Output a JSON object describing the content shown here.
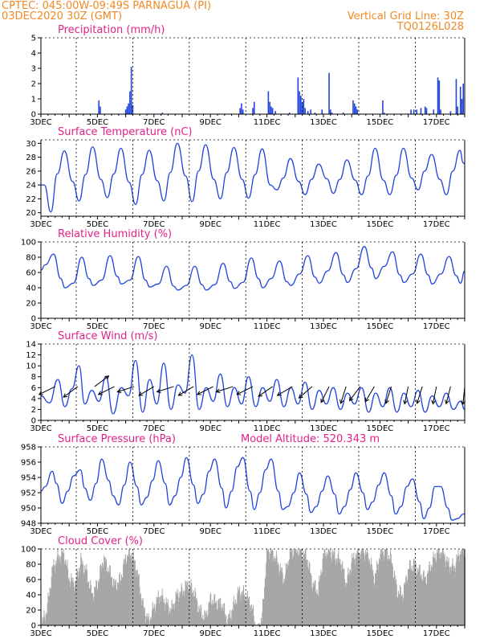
{
  "header": {
    "line1_left": "CPTEC:   045:00W-09:49S   PARNAGUA (PI)",
    "line2_left": "03DEC2020 30Z (GMT)",
    "line1_right": "Vertical Grid Line: 30Z",
    "line2_right": "TQ0126L028"
  },
  "colors": {
    "header": "#f08a24",
    "title": "#e0218a",
    "series": "#2244dd",
    "cloud": "#a6a6a6",
    "arrow": "#000000"
  },
  "chart_data": [
    {
      "id": "precip",
      "type": "bar",
      "title": "Precipitation (mm/h)",
      "ylim": [
        0,
        5
      ],
      "yticks": [
        0,
        1,
        2,
        3,
        4,
        5
      ],
      "xticks": [
        "3DEC",
        "5DEC",
        "7DEC",
        "9DEC",
        "11DEC",
        "13DEC",
        "15DEC",
        "17DEC"
      ],
      "x": [
        5.05,
        5.1,
        6.0,
        6.05,
        6.1,
        6.15,
        6.2,
        6.25,
        7.3,
        10.05,
        10.1,
        10.15,
        10.5,
        10.55,
        11.05,
        11.1,
        11.15,
        11.2,
        11.3,
        11.8,
        12.1,
        12.15,
        12.2,
        12.25,
        12.3,
        12.35,
        12.45,
        12.55,
        12.7,
        12.95,
        13.2,
        13.25,
        13.3,
        13.7,
        14.05,
        14.1,
        14.15,
        14.2,
        15.1,
        15.15,
        16.1,
        16.2,
        16.3,
        16.45,
        16.6,
        16.65,
        16.9,
        17.05,
        17.1,
        17.15,
        17.5,
        17.7,
        17.75,
        17.85,
        17.9,
        17.95
      ],
      "values": [
        0.9,
        0.5,
        0.3,
        0.5,
        0.7,
        1.5,
        3.1,
        0.6,
        0.1,
        0.4,
        0.7,
        0.3,
        0.4,
        0.8,
        1.5,
        0.8,
        0.5,
        0.4,
        0.2,
        0.1,
        2.4,
        1.5,
        1.2,
        0.8,
        1.0,
        0.4,
        0.2,
        0.3,
        0.1,
        0.3,
        2.7,
        0.3,
        0.1,
        0.1,
        0.9,
        0.7,
        0.5,
        0.3,
        0.9,
        0.1,
        0.3,
        0.3,
        0.3,
        0.4,
        0.5,
        0.4,
        0.3,
        2.4,
        2.2,
        0.3,
        0.2,
        2.3,
        0.5,
        1.8,
        1.0,
        2.0
      ]
    },
    {
      "id": "temp",
      "type": "line",
      "title": "Surface Temperature (nC)",
      "ylim": [
        19.5,
        30.5
      ],
      "yticks": [
        20,
        22,
        24,
        26,
        28,
        30
      ],
      "xticks": [
        "3DEC",
        "5DEC",
        "7DEC",
        "9DEC",
        "11DEC",
        "13DEC",
        "15DEC",
        "17DEC"
      ],
      "x": [
        3.0,
        3.12,
        3.35,
        3.58,
        3.83,
        4.12,
        4.35,
        4.58,
        4.83,
        5.12,
        5.35,
        5.58,
        5.83,
        6.12,
        6.35,
        6.58,
        6.83,
        7.12,
        7.35,
        7.58,
        7.83,
        8.12,
        8.35,
        8.58,
        8.83,
        9.12,
        9.35,
        9.58,
        9.83,
        10.12,
        10.35,
        10.58,
        10.83,
        11.12,
        11.35,
        11.58,
        11.83,
        12.12,
        12.35,
        12.58,
        12.83,
        13.12,
        13.35,
        13.58,
        13.83,
        14.12,
        14.35,
        14.58,
        14.83,
        15.12,
        15.35,
        15.58,
        15.83,
        16.12,
        16.35,
        16.58,
        16.83,
        17.12,
        17.35,
        17.58,
        17.83,
        17.95,
        18.0
      ],
      "values": [
        24.0,
        24.0,
        20.1,
        25.6,
        28.9,
        24.5,
        21.7,
        25.5,
        29.5,
        24.8,
        22.2,
        25.6,
        29.3,
        24.4,
        21.2,
        25.5,
        29.0,
        24.6,
        21.7,
        25.8,
        30.0,
        25.3,
        21.6,
        26.0,
        29.8,
        24.8,
        22.0,
        25.8,
        29.4,
        24.8,
        22.1,
        25.5,
        29.2,
        24.0,
        23.3,
        25.0,
        27.8,
        24.5,
        22.6,
        24.8,
        27.0,
        24.9,
        22.8,
        24.8,
        27.6,
        24.7,
        22.6,
        25.3,
        29.3,
        24.7,
        22.6,
        25.4,
        29.3,
        25.0,
        23.3,
        26.0,
        28.4,
        24.8,
        22.6,
        26.0,
        29.0,
        27.2,
        27.0
      ]
    },
    {
      "id": "rh",
      "type": "line",
      "title": "Relative Humidity (%)",
      "ylim": [
        0,
        100
      ],
      "yticks": [
        0,
        20,
        40,
        60,
        80,
        100
      ],
      "xticks": [
        "3DEC",
        "5DEC",
        "7DEC",
        "9DEC",
        "11DEC",
        "13DEC",
        "15DEC",
        "17DEC"
      ],
      "x": [
        3.0,
        3.15,
        3.45,
        3.7,
        3.85,
        4.15,
        4.45,
        4.7,
        4.85,
        5.15,
        5.45,
        5.7,
        5.85,
        6.15,
        6.45,
        6.7,
        6.85,
        7.15,
        7.45,
        7.7,
        7.85,
        8.15,
        8.45,
        8.7,
        8.85,
        9.15,
        9.45,
        9.7,
        9.85,
        10.15,
        10.45,
        10.7,
        10.85,
        11.15,
        11.45,
        11.7,
        11.85,
        12.15,
        12.45,
        12.7,
        12.85,
        13.15,
        13.45,
        13.7,
        13.85,
        14.15,
        14.45,
        14.7,
        14.85,
        15.15,
        15.45,
        15.7,
        15.85,
        16.15,
        16.45,
        16.7,
        16.85,
        17.15,
        17.45,
        17.7,
        17.85,
        18.0
      ],
      "values": [
        63,
        70,
        84,
        52,
        40,
        46,
        80,
        52,
        43,
        50,
        82,
        55,
        45,
        50,
        81,
        50,
        41,
        45,
        68,
        42,
        37,
        43,
        68,
        44,
        37,
        44,
        72,
        48,
        39,
        47,
        79,
        52,
        40,
        52,
        75,
        48,
        43,
        58,
        82,
        54,
        46,
        62,
        86,
        57,
        47,
        65,
        94,
        66,
        52,
        68,
        87,
        57,
        47,
        58,
        84,
        57,
        45,
        58,
        81,
        56,
        46,
        62
      ]
    },
    {
      "id": "wind",
      "type": "line",
      "title": "Surface Wind (m/s)",
      "ylim": [
        0,
        14
      ],
      "yticks": [
        0,
        2,
        4,
        6,
        8,
        10,
        12,
        14
      ],
      "xticks": [
        "3DEC",
        "5DEC",
        "7DEC",
        "9DEC",
        "11DEC",
        "13DEC",
        "15DEC",
        "17DEC"
      ],
      "x": [
        3.0,
        3.3,
        3.6,
        3.85,
        4.1,
        4.35,
        4.55,
        4.8,
        5.05,
        5.3,
        5.55,
        5.85,
        6.1,
        6.35,
        6.6,
        6.85,
        7.1,
        7.35,
        7.6,
        7.85,
        8.1,
        8.35,
        8.6,
        8.85,
        9.1,
        9.35,
        9.6,
        9.85,
        10.1,
        10.35,
        10.6,
        10.85,
        11.1,
        11.35,
        11.6,
        11.85,
        12.1,
        12.35,
        12.6,
        12.85,
        13.1,
        13.35,
        13.6,
        13.85,
        14.1,
        14.35,
        14.6,
        14.85,
        15.1,
        15.35,
        15.6,
        15.85,
        16.1,
        16.35,
        16.6,
        16.85,
        17.1,
        17.35,
        17.6,
        17.85,
        18.0
      ],
      "values": [
        4.5,
        3.2,
        7.5,
        2.5,
        5.8,
        10.0,
        3.0,
        5.5,
        3.5,
        8.0,
        1.2,
        6.0,
        4.5,
        11.0,
        1.5,
        7.5,
        3.0,
        10.5,
        2.0,
        6.5,
        5.0,
        12.0,
        2.0,
        6.0,
        3.5,
        8.5,
        2.5,
        6.0,
        3.0,
        8.0,
        2.5,
        6.0,
        3.5,
        7.5,
        2.5,
        6.0,
        3.0,
        7.0,
        2.0,
        5.5,
        3.0,
        6.0,
        2.0,
        5.0,
        3.0,
        6.0,
        1.5,
        5.0,
        2.5,
        6.0,
        1.5,
        5.0,
        2.5,
        5.5,
        1.5,
        4.5,
        2.5,
        5.0,
        2.0,
        3.5,
        2.0
      ],
      "arrows": [
        {
          "x": 3.5,
          "y": 6.2,
          "u": -0.9,
          "v": -0.45
        },
        {
          "x": 4.3,
          "y": 6.2,
          "u": -0.8,
          "v": -0.6
        },
        {
          "x": 4.9,
          "y": 6.2,
          "u": 0.8,
          "v": 0.6
        },
        {
          "x": 5.6,
          "y": 6.2,
          "u": -0.9,
          "v": -0.45
        },
        {
          "x": 6.3,
          "y": 6.2,
          "u": -0.95,
          "v": -0.3
        },
        {
          "x": 7.0,
          "y": 6.2,
          "u": -0.85,
          "v": -0.5
        },
        {
          "x": 7.7,
          "y": 6.2,
          "u": -0.95,
          "v": -0.3
        },
        {
          "x": 8.4,
          "y": 6.2,
          "u": -0.85,
          "v": -0.5
        },
        {
          "x": 9.1,
          "y": 6.2,
          "u": -0.9,
          "v": -0.45
        },
        {
          "x": 9.8,
          "y": 6.2,
          "u": -0.95,
          "v": -0.3
        },
        {
          "x": 10.5,
          "y": 6.2,
          "u": -0.9,
          "v": -0.45
        },
        {
          "x": 11.2,
          "y": 6.2,
          "u": -0.8,
          "v": -0.55
        },
        {
          "x": 11.9,
          "y": 6.2,
          "u": -0.85,
          "v": -0.5
        },
        {
          "x": 12.6,
          "y": 6.2,
          "u": -0.75,
          "v": -0.65
        },
        {
          "x": 13.2,
          "y": 6.2,
          "u": -0.45,
          "v": -0.9
        },
        {
          "x": 13.8,
          "y": 6.2,
          "u": -0.3,
          "v": -0.95
        },
        {
          "x": 14.3,
          "y": 6.2,
          "u": -0.6,
          "v": -0.8
        },
        {
          "x": 14.8,
          "y": 6.2,
          "u": -0.5,
          "v": -0.85
        },
        {
          "x": 15.4,
          "y": 6.2,
          "u": -0.3,
          "v": -0.95
        },
        {
          "x": 16.0,
          "y": 6.2,
          "u": -0.2,
          "v": -0.98
        },
        {
          "x": 16.5,
          "y": 6.2,
          "u": -0.3,
          "v": -0.95
        },
        {
          "x": 17.0,
          "y": 6.2,
          "u": -0.2,
          "v": -0.98
        },
        {
          "x": 17.5,
          "y": 6.2,
          "u": -0.25,
          "v": -0.97
        },
        {
          "x": 18.0,
          "y": 6.2,
          "u": -0.1,
          "v": -1.0
        }
      ]
    },
    {
      "id": "pres",
      "type": "line",
      "title": "Surface Pressure (hPa)",
      "annotation": "Model Altitude: 520.343 m",
      "ylim": [
        948,
        958
      ],
      "yticks": [
        948,
        950,
        952,
        954,
        956,
        958
      ],
      "xticks": [
        "3DEC",
        "5DEC",
        "7DEC",
        "9DEC",
        "11DEC",
        "13DEC",
        "15DEC",
        "17DEC"
      ],
      "x": [
        3.0,
        3.15,
        3.4,
        3.55,
        3.75,
        3.95,
        4.15,
        4.4,
        4.55,
        4.75,
        4.95,
        5.15,
        5.4,
        5.55,
        5.75,
        5.95,
        6.15,
        6.4,
        6.55,
        6.75,
        6.95,
        7.15,
        7.4,
        7.55,
        7.75,
        7.95,
        8.15,
        8.4,
        8.55,
        8.75,
        8.95,
        9.15,
        9.4,
        9.55,
        9.75,
        9.95,
        10.15,
        10.4,
        10.55,
        10.75,
        10.95,
        11.15,
        11.4,
        11.55,
        11.75,
        11.95,
        12.15,
        12.4,
        12.55,
        12.75,
        12.95,
        13.15,
        13.4,
        13.55,
        13.75,
        13.95,
        14.15,
        14.4,
        14.55,
        14.75,
        14.95,
        15.15,
        15.4,
        15.55,
        15.75,
        15.95,
        16.15,
        16.4,
        16.55,
        16.75,
        16.95,
        17.15,
        17.4,
        17.55,
        17.75,
        17.95,
        18.0
      ],
      "values": [
        952.2,
        952.8,
        954.8,
        953.2,
        950.6,
        952.2,
        954.2,
        955.0,
        952.6,
        951.0,
        953.2,
        956.4,
        953.6,
        951.6,
        950.4,
        953.0,
        956.0,
        952.8,
        950.4,
        951.4,
        953.6,
        956.2,
        953.2,
        950.4,
        951.6,
        954.0,
        956.6,
        953.0,
        950.6,
        951.8,
        954.8,
        956.4,
        952.6,
        950.0,
        952.2,
        955.4,
        956.6,
        952.2,
        949.8,
        952.0,
        955.0,
        956.4,
        952.2,
        949.8,
        950.2,
        952.0,
        954.6,
        951.8,
        949.4,
        950.2,
        952.2,
        954.2,
        951.8,
        949.2,
        950.2,
        952.4,
        954.6,
        952.0,
        949.8,
        950.8,
        953.0,
        954.6,
        951.6,
        949.2,
        950.2,
        952.8,
        953.8,
        950.8,
        948.6,
        950.0,
        952.8,
        952.8,
        950.0,
        948.4,
        948.6,
        949.2,
        949.2
      ]
    },
    {
      "id": "cloud",
      "type": "bar",
      "title": "Cloud Cover (%)",
      "ylim": [
        0,
        100
      ],
      "yticks": [
        0,
        20,
        40,
        60,
        80,
        100
      ],
      "xticks": [
        "3DEC",
        "5DEC",
        "7DEC",
        "9DEC",
        "11DEC",
        "13DEC",
        "15DEC",
        "17DEC"
      ],
      "x": [
        3.0,
        3.2,
        3.4,
        3.6,
        3.8,
        4.0,
        4.2,
        4.4,
        4.6,
        4.8,
        5.0,
        5.2,
        5.4,
        5.6,
        5.8,
        6.0,
        6.2,
        6.4,
        6.6,
        6.8,
        7.0,
        7.2,
        7.4,
        7.6,
        7.8,
        8.0,
        8.2,
        8.4,
        8.6,
        8.8,
        9.0,
        9.2,
        9.4,
        9.6,
        9.8,
        10.0,
        10.2,
        10.4,
        10.6,
        10.8,
        11.0,
        11.2,
        11.4,
        11.6,
        11.8,
        12.0,
        12.2,
        12.4,
        12.6,
        12.8,
        13.0,
        13.2,
        13.4,
        13.6,
        13.8,
        14.0,
        14.2,
        14.4,
        14.6,
        14.8,
        15.0,
        15.2,
        15.4,
        15.6,
        15.8,
        16.0,
        16.2,
        16.4,
        16.6,
        16.8,
        17.0,
        17.2,
        17.4,
        17.6,
        17.8,
        18.0
      ],
      "values": [
        0,
        20,
        75,
        90,
        95,
        60,
        55,
        85,
        70,
        40,
        55,
        88,
        72,
        52,
        60,
        90,
        95,
        70,
        25,
        5,
        25,
        40,
        30,
        20,
        40,
        45,
        55,
        45,
        20,
        10,
        35,
        30,
        28,
        5,
        25,
        45,
        40,
        30,
        0,
        5,
        100,
        95,
        80,
        60,
        95,
        100,
        98,
        90,
        55,
        45,
        95,
        98,
        90,
        85,
        55,
        85,
        95,
        98,
        90,
        60,
        95,
        98,
        85,
        45,
        40,
        75,
        80,
        70,
        60,
        80,
        95,
        98,
        80,
        75,
        95,
        100
      ]
    }
  ]
}
